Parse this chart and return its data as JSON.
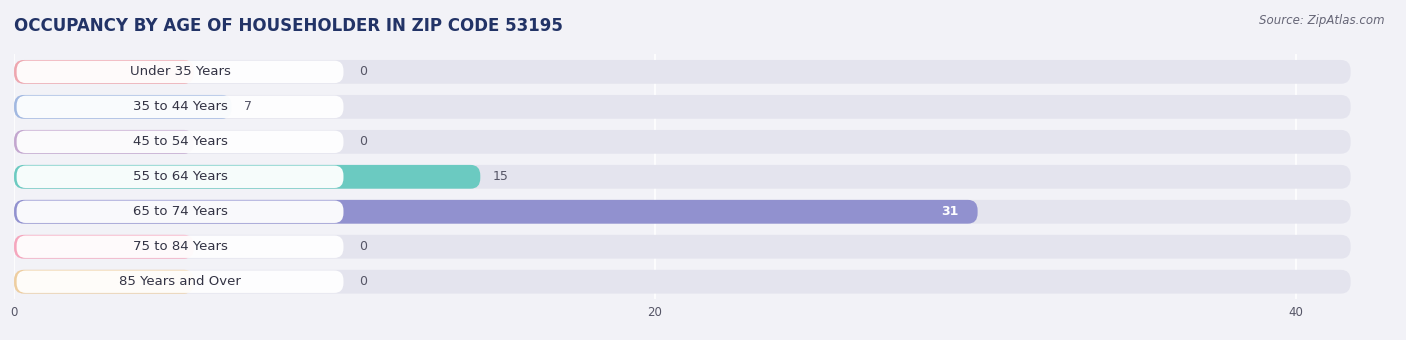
{
  "title": "OCCUPANCY BY AGE OF HOUSEHOLDER IN ZIP CODE 53195",
  "source": "Source: ZipAtlas.com",
  "categories": [
    "Under 35 Years",
    "35 to 44 Years",
    "45 to 54 Years",
    "55 to 64 Years",
    "65 to 74 Years",
    "75 to 84 Years",
    "85 Years and Over"
  ],
  "values": [
    0,
    7,
    0,
    15,
    31,
    0,
    0
  ],
  "bar_colors": [
    "#f0a0a8",
    "#9ab4e0",
    "#c0a0cc",
    "#5ec8bc",
    "#8888cc",
    "#f8a0b8",
    "#f0cc98"
  ],
  "bg_color": "#f2f2f7",
  "bar_bg_color": "#e4e4ee",
  "label_bg": "#ffffff",
  "xlim_max": 43,
  "xticks": [
    0,
    20,
    40
  ],
  "title_fontsize": 12,
  "source_fontsize": 8.5,
  "label_fontsize": 9.5,
  "value_fontsize": 9
}
